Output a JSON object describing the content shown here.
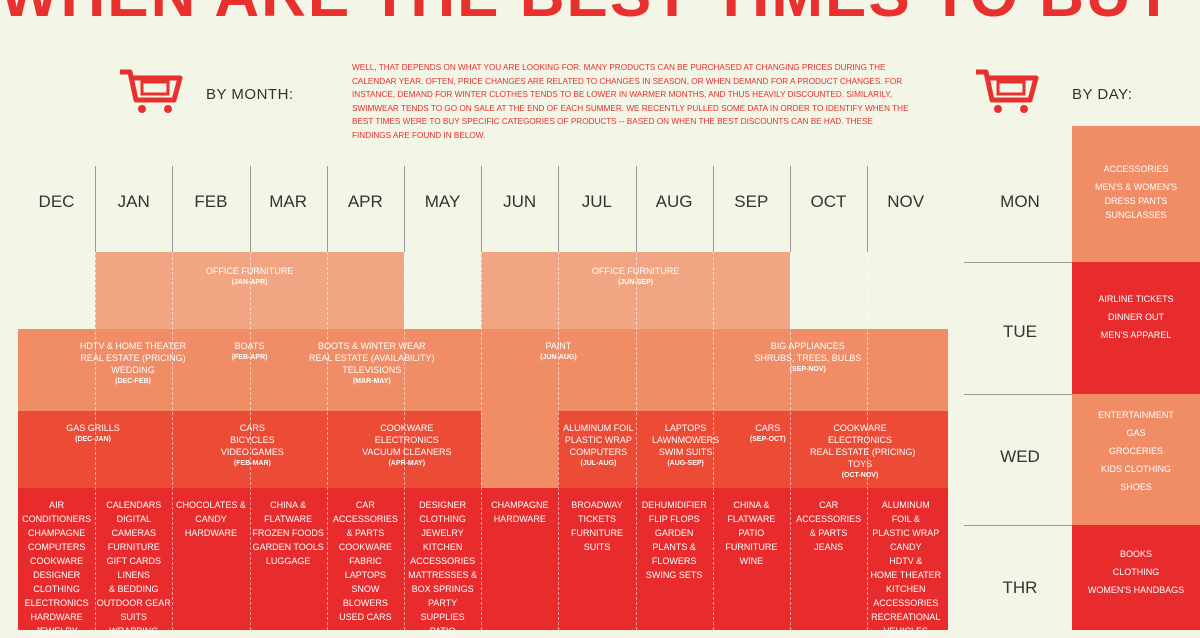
{
  "title": "WHEN ARE THE BEST TIMES TO BUY ?",
  "by_month_label": "BY MONTH:",
  "by_day_label": "BY DAY:",
  "intro": "WELL, THAT DEPENDS ON WHAT YOU ARE LOOKING FOR. MANY PRODUCTS CAN BE PURCHASED AT CHANGING PRICES DURING THE CALENDAR YEAR. OFTEN, PRICE CHANGES ARE RELATED TO CHANGES IN SEASON, OR WHEN DEMAND FOR A PRODUCT CHANGES. FOR INSTANCE, DEMAND FOR WINTER CLOTHES TENDS TO BE LOWER IN WARMER MONTHS, AND THUS HEAVILY DISCOUNTED. SIMILARILY, SWIMWEAR TENDS TO GO ON SALE AT THE END OF EACH SUMMER. WE RECENTLY PULLED SOME DATA IN ORDER TO IDENTIFY WHEN THE BEST TIMES WERE TO BUY SPECIFIC CATEGORIES OF PRODUCTS -- BASED ON WHEN THE BEST DISCOUNTS CAN BE HAD. THESE FINDINGS ARE FOUND IN BELOW.",
  "months": [
    "DEC",
    "JAN",
    "FEB",
    "MAR",
    "APR",
    "MAY",
    "JUN",
    "JUL",
    "AUG",
    "SEP",
    "OCT",
    "NOV"
  ],
  "colors": {
    "red": "#e8302e",
    "peach1": "#f1a582",
    "peach2": "#f08c66",
    "orange": "#ec4b36",
    "bright": "#e82b2d"
  },
  "tier1": [
    {
      "t": "OFFICE FURNITURE",
      "s": "(JAN-APR)"
    },
    {
      "t": "OFFICE FURNITURE",
      "s": "(JUN-SEP)"
    }
  ],
  "tier2": [
    {
      "t": "HDTV & HOME THEATER|REAL ESTATE (PRICING)|WEDDING",
      "s": "(DEC-FEB)"
    },
    {
      "t": "BOATS",
      "s": "(FEB-APR)"
    },
    {
      "t": "BOOTS & WINTER WEAR|REAL ESTATE (AVAILABILITY)|TELEVISIONS",
      "s": "(MAR-MAY)"
    },
    {
      "t": "PAINT",
      "s": "(JUN-AUG)"
    },
    {
      "t": "BIG APPLIANCES|SHRUBS, TREES, BULBS",
      "s": "(SEP-NOV)"
    }
  ],
  "tier3": [
    {
      "t": "GAS GRILLS",
      "s": "(DEC-JAN)"
    },
    {
      "t": "CARS|BICYCLES|VIDEO GAMES",
      "s": "(FEB-MAR)"
    },
    {
      "t": "COOKWARE|ELECTRONICS|VACUUM CLEANERS",
      "s": "(APR-MAY)"
    },
    {
      "t": "ALUMINUM FOIL|PLASTIC WRAP|COMPUTERS",
      "s": "(JUL-AUG)"
    },
    {
      "t": "LAPTOPS|LAWNMOWERS|SWIM SUITS",
      "s": "(AUG-SEP)"
    },
    {
      "t": "CARS",
      "s": "(SEP-OCT)"
    },
    {
      "t": "COOKWARE|ELECTRONICS|REAL ESTATE (PRICING)|TOYS",
      "s": "(OCT-NOV)"
    }
  ],
  "monthly": [
    "AIR|CONDITIONERS|CHAMPAGNE|COMPUTERS|COOKWARE|DESIGNER|CLOTHING|ELECTRONICS|HARDWARE|JEWELRY",
    "CALENDARS|DIGITAL|CAMERAS|FURNITURE|GIFT CARDS|LINENS|& BEDDING|OUTDOOR GEAR|SUITS|WRAPPING",
    "CHOCOLATES &|CANDY|HARDWARE",
    "CHINA &|FLATWARE|FROZEN FOODS|GARDEN TOOLS|LUGGAGE",
    "CAR|ACCESSORIES|& PARTS|COOKWARE|FABRIC|LAPTOPS|SNOW|BLOWERS|USED CARS",
    "DESIGNER|CLOTHING|JEWELRY|KITCHEN|ACCESSORIES|MATTRESSES &|BOX SPRINGS|PARTY|SUPPLIES|PATIO",
    "CHAMPAGNE|HARDWARE",
    "BROADWAY|TICKETS|FURNITURE|SUITS",
    "DEHUMIDIFIER|FLIP FLOPS|GARDEN|PLANTS &|FLOWERS|SWING SETS",
    "CHINA &|FLATWARE|PATIO|FURNITURE|WINE",
    "CAR|ACCESSORIES|& PARTS|JEANS",
    "ALUMINUM|FOIL &|PLASTIC WRAP|CANDY|HDTV &|HOME THEATER|KITCHEN|ACCESSORIES|RECREATIONAL|VEHICLES"
  ],
  "days": [
    {
      "name": "MON",
      "items": "ACCESSORIES|MEN'S & WOMEN'S|DRESS PANTS|SUNGLASSES"
    },
    {
      "name": "TUE",
      "items": "AIRLINE TICKETS|DINNER OUT|MEN'S APPAREL"
    },
    {
      "name": "WED",
      "items": "ENTERTAINMENT|GAS|GROCERIES|KIDS CLOTHING|SHOES"
    },
    {
      "name": "THR",
      "items": "BOOKS|CLOTHING|WOMEN'S HANDBAGS"
    }
  ]
}
